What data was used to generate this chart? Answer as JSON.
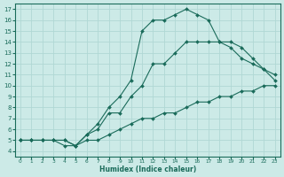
{
  "bg_color": "#cceae7",
  "line_color": "#1a6b5a",
  "grid_color": "#b0d8d4",
  "xlabel": "Humidex (Indice chaleur)",
  "xlim": [
    -0.5,
    23.5
  ],
  "ylim": [
    3.5,
    17.5
  ],
  "xticks": [
    0,
    1,
    2,
    3,
    4,
    5,
    6,
    7,
    8,
    9,
    10,
    11,
    12,
    13,
    14,
    15,
    16,
    17,
    18,
    19,
    20,
    21,
    22,
    23
  ],
  "yticks": [
    4,
    5,
    6,
    7,
    8,
    9,
    10,
    11,
    12,
    13,
    14,
    15,
    16,
    17
  ],
  "line1_x": [
    0,
    1,
    2,
    3,
    4,
    5,
    6,
    7,
    8,
    9,
    10,
    11,
    12,
    13,
    14,
    15,
    16,
    17,
    18,
    19,
    20,
    21,
    22,
    23
  ],
  "line1_y": [
    5.0,
    5.0,
    5.0,
    5.0,
    5.0,
    4.5,
    5.0,
    5.0,
    5.5,
    6.0,
    6.5,
    7.0,
    7.0,
    7.5,
    7.5,
    8.0,
    8.5,
    8.5,
    9.0,
    9.0,
    9.5,
    9.5,
    10.0,
    10.0
  ],
  "line2_x": [
    0,
    1,
    2,
    3,
    4,
    5,
    6,
    7,
    8,
    9,
    10,
    11,
    12,
    13,
    14,
    15,
    16,
    17,
    18,
    19,
    20,
    21,
    22,
    23
  ],
  "line2_y": [
    5.0,
    5.0,
    5.0,
    5.0,
    5.0,
    4.5,
    5.5,
    6.0,
    7.5,
    7.5,
    9.0,
    10.0,
    12.0,
    12.0,
    13.0,
    14.0,
    14.0,
    14.0,
    14.0,
    13.5,
    12.5,
    12.0,
    11.5,
    11.0
  ],
  "line3_x": [
    0,
    1,
    2,
    3,
    4,
    5,
    6,
    7,
    8,
    9,
    10,
    11,
    12,
    13,
    14,
    15,
    16,
    17,
    18,
    19,
    20,
    21,
    22,
    23
  ],
  "line3_y": [
    5.0,
    5.0,
    5.0,
    5.0,
    4.5,
    4.5,
    5.5,
    6.5,
    8.0,
    9.0,
    10.5,
    15.0,
    16.0,
    16.0,
    16.5,
    17.0,
    16.5,
    16.0,
    14.0,
    14.0,
    13.5,
    12.5,
    11.5,
    10.5
  ]
}
